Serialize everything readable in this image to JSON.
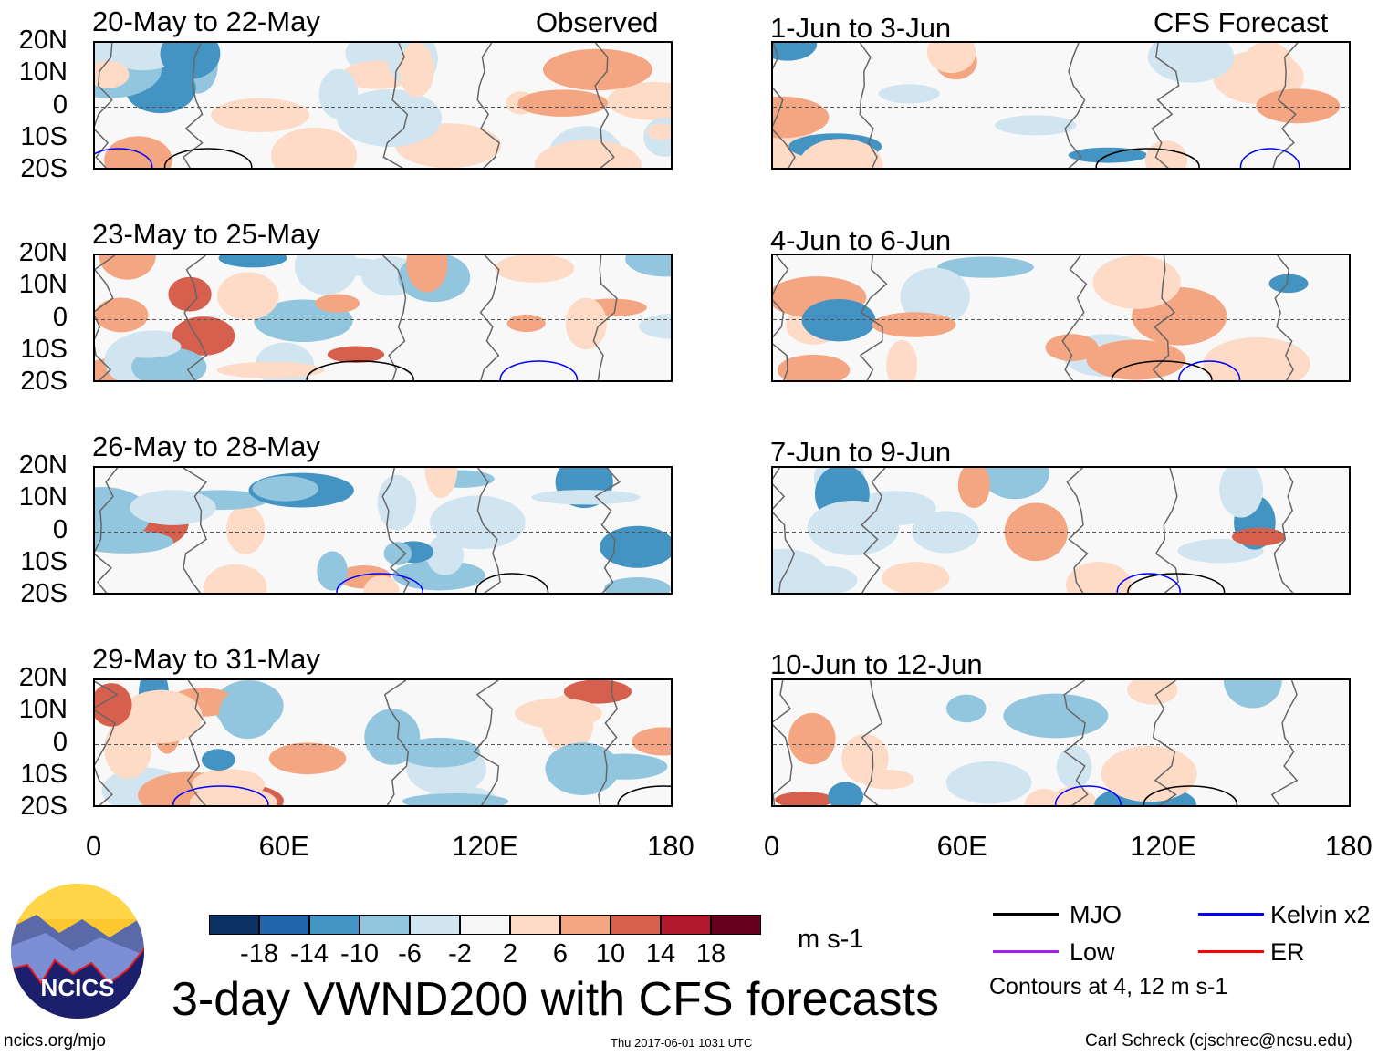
{
  "chart_data": {
    "type": "heatmap",
    "title": "3-day VWND200 with CFS forecasts",
    "variable": "VWND200",
    "units": "m s-1",
    "x_ticks": [
      "0",
      "60E",
      "120E",
      "180"
    ],
    "y_ticks": [
      "20N",
      "10N",
      "0",
      "10S",
      "20S"
    ],
    "xlim": [
      0,
      180
    ],
    "ylim": [
      -20,
      20
    ],
    "left_column_label": "Observed",
    "right_column_label": "CFS Forecast",
    "panels_observed": [
      "20-May to 22-May",
      "23-May to 25-May",
      "26-May to 28-May",
      "29-May to 31-May"
    ],
    "panels_forecast": [
      "1-Jun to 3-Jun",
      "4-Jun to 6-Jun",
      "7-Jun to 9-Jun",
      "10-Jun to 12-Jun"
    ],
    "colorbar": {
      "labels": [
        "-18",
        "-14",
        "-10",
        "-6",
        "-2",
        "2",
        "6",
        "10",
        "14",
        "18"
      ],
      "colors": [
        "#0a3161",
        "#2166ac",
        "#4393c3",
        "#92c5de",
        "#d1e5f0",
        "#f7f7f7",
        "#fddbc7",
        "#f4a582",
        "#d6604d",
        "#b2182b",
        "#67001f"
      ]
    },
    "legend": [
      {
        "label": "MJO",
        "color": "#000000"
      },
      {
        "label": "Kelvin x2",
        "color": "#0000ff"
      },
      {
        "label": "Low",
        "color": "#a020f0"
      },
      {
        "label": "ER",
        "color": "#ff0000"
      }
    ],
    "contour_note": "Contours at 4, 12 m s-1"
  },
  "footer": {
    "logo_text": "NCICS",
    "site": "ncics.org/mjo",
    "timestamp": "Thu 2017-06-01 1031 UTC",
    "author": "Carl Schreck (cjschrec@ncsu.edu)"
  }
}
